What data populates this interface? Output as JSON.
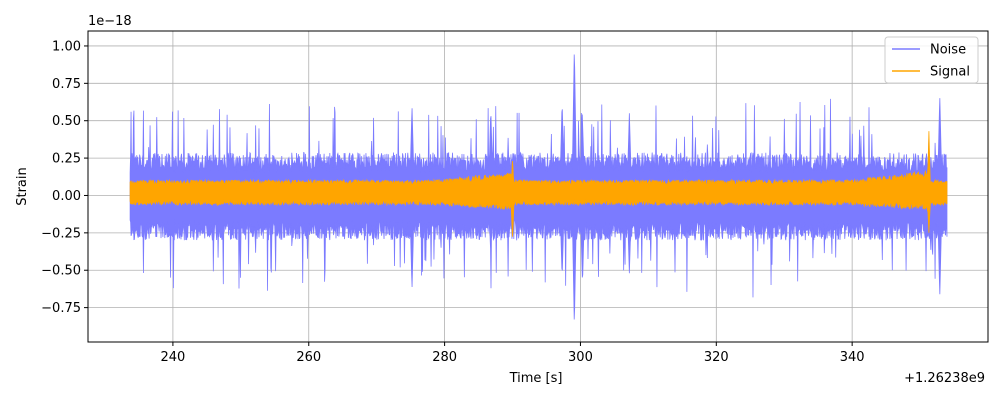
{
  "chart_data": {
    "type": "line",
    "title": "",
    "xlabel": "Time [s]",
    "ylabel": "Strain",
    "x_offset_label": "+1.26238e9",
    "y_scale_label": "1e−18",
    "xlim": [
      227.5,
      360.0
    ],
    "ylim": [
      -0.98,
      1.1
    ],
    "x_ticks": [
      240,
      260,
      280,
      300,
      320,
      340
    ],
    "x_tick_labels": [
      "240",
      "260",
      "280",
      "300",
      "320",
      "340"
    ],
    "y_ticks": [
      -0.75,
      -0.5,
      -0.25,
      0.0,
      0.25,
      0.5,
      0.75,
      1.0
    ],
    "y_tick_labels": [
      "−0.75",
      "−0.50",
      "−0.25",
      "0.00",
      "0.25",
      "0.50",
      "0.75",
      "1.00"
    ],
    "grid": true,
    "legend_position": "top-right",
    "series": [
      {
        "name": "Noise",
        "color": "#7b7bff",
        "x_range": [
          233.7,
          354.0
        ],
        "baseline_amplitude": 0.25,
        "notable_peaks": [
          {
            "x": 299.1,
            "max": 1.0,
            "min": -0.88
          },
          {
            "x": 297.3,
            "max": 0.63,
            "min": -0.55
          },
          {
            "x": 352.9,
            "max": 0.67,
            "min": -0.68
          },
          {
            "x": 300.3,
            "max": 0.5,
            "min": -0.6
          },
          {
            "x": 275.2,
            "max": 0.6,
            "min": -0.63
          },
          {
            "x": 286.8,
            "max": 0.58,
            "min": -0.4
          },
          {
            "x": 307.2,
            "max": 0.55,
            "min": -0.52
          }
        ]
      },
      {
        "name": "Signal",
        "color": "#ffa500",
        "x_range": [
          233.7,
          354.0
        ],
        "baseline_amplitude": 0.07,
        "notable_peaks": [
          {
            "x": 290.0,
            "max": 0.25,
            "min": -0.3
          },
          {
            "x": 351.3,
            "max": 0.43,
            "min": -0.25
          }
        ]
      }
    ]
  }
}
